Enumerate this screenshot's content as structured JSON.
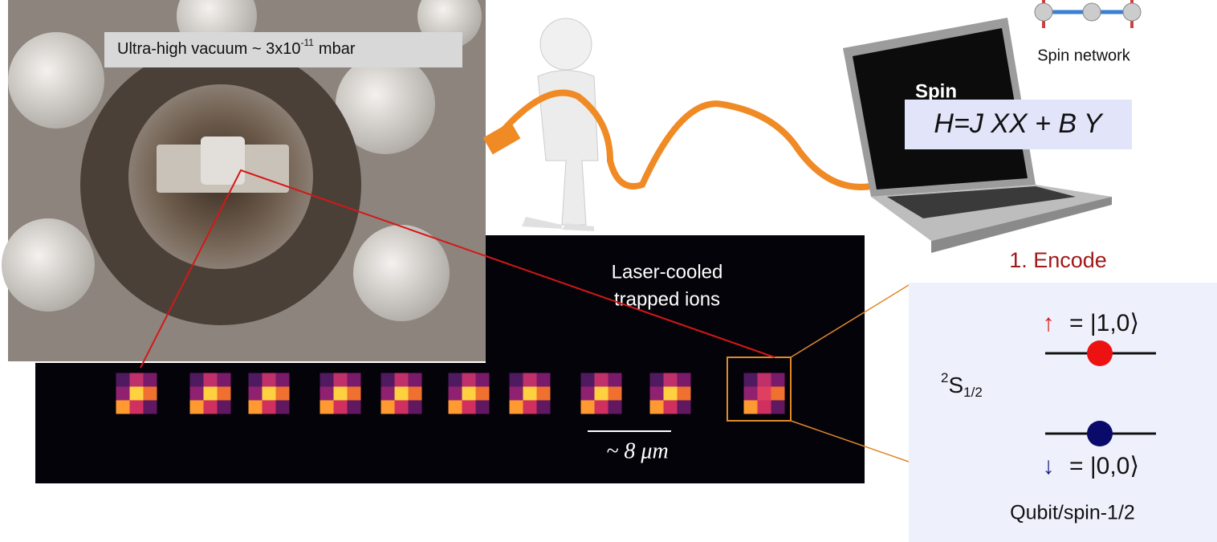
{
  "vacuum_label": {
    "text": "Ultra-high vacuum ~ 3x10",
    "exponent": "-11",
    "unit": "mbar"
  },
  "spin_network": "Spin network",
  "laptop": {
    "screen_title": "Spin",
    "hamiltonian": "H=J XX + B Y"
  },
  "step": "1. Encode",
  "ions_label": [
    "Laser-cooled",
    "trapped ions"
  ],
  "scale_bar": "~ 8 μm",
  "qubit": {
    "up_arrow": "↑",
    "up_state": "= |1,0⟩",
    "level_sup": "2",
    "level": "S",
    "level_sub": "1/2",
    "down_arrow": "↓",
    "down_state": "= |0,0⟩",
    "caption": "Qubit/spin-1/2"
  }
}
